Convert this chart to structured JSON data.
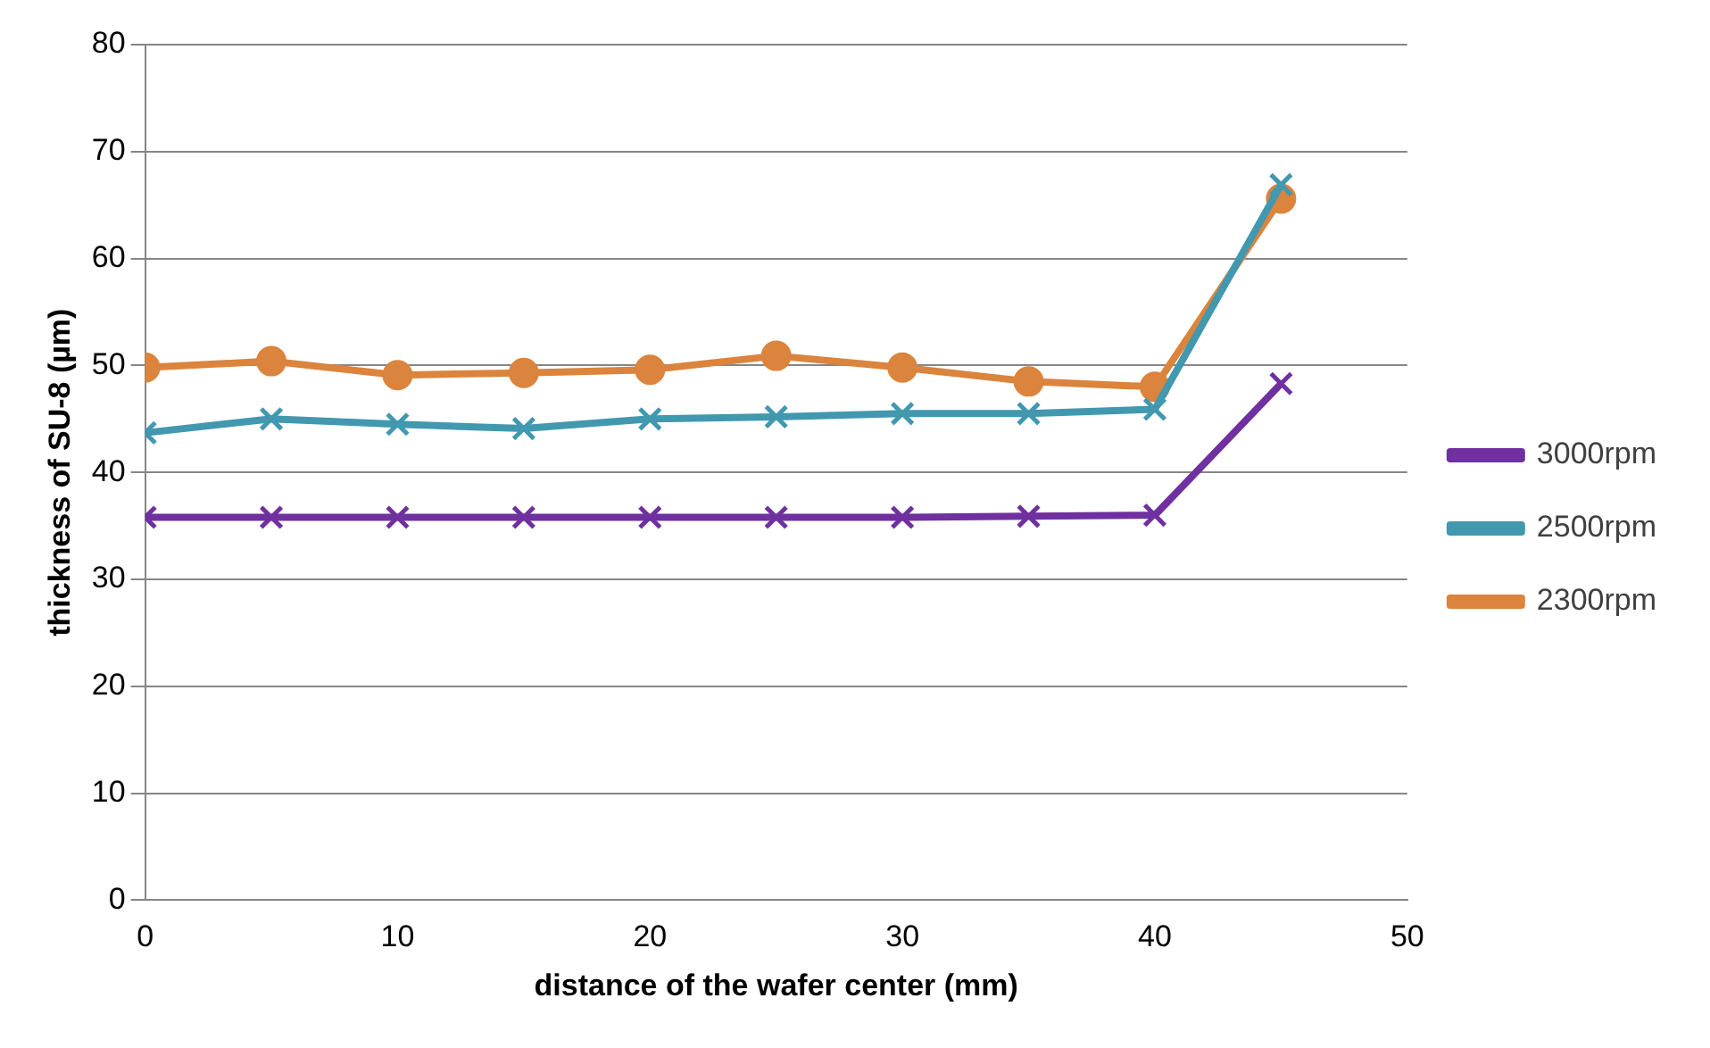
{
  "chart_data": {
    "type": "line",
    "xlabel": "distance of the wafer center (mm)",
    "ylabel": "thickness of SU-8 (µm)",
    "x": [
      0,
      5,
      10,
      15,
      20,
      25,
      30,
      35,
      40,
      45
    ],
    "xlim": [
      0,
      50
    ],
    "xticks": [
      0,
      10,
      20,
      30,
      40,
      50
    ],
    "ylim": [
      0,
      80
    ],
    "yticks": [
      0,
      10,
      20,
      30,
      40,
      50,
      60,
      70,
      80
    ],
    "grid": "y",
    "legend": "right",
    "line_style": "solid",
    "series": [
      {
        "name": "3000rpm",
        "color": "#7030a0",
        "marker": "cross",
        "values": [
          35.8,
          35.8,
          35.8,
          35.8,
          35.8,
          35.8,
          35.8,
          35.9,
          36,
          48.3
        ]
      },
      {
        "name": "2500rpm",
        "color": "#4198af",
        "marker": "cross",
        "values": [
          43.7,
          45,
          44.5,
          44.1,
          45,
          45.2,
          45.5,
          45.5,
          45.9,
          66.9
        ]
      },
      {
        "name": "2300rpm",
        "color": "#db843d",
        "marker": "circle",
        "values": [
          49.8,
          50.4,
          49.1,
          49.3,
          49.6,
          50.9,
          49.8,
          48.5,
          48,
          65.6
        ]
      }
    ]
  }
}
